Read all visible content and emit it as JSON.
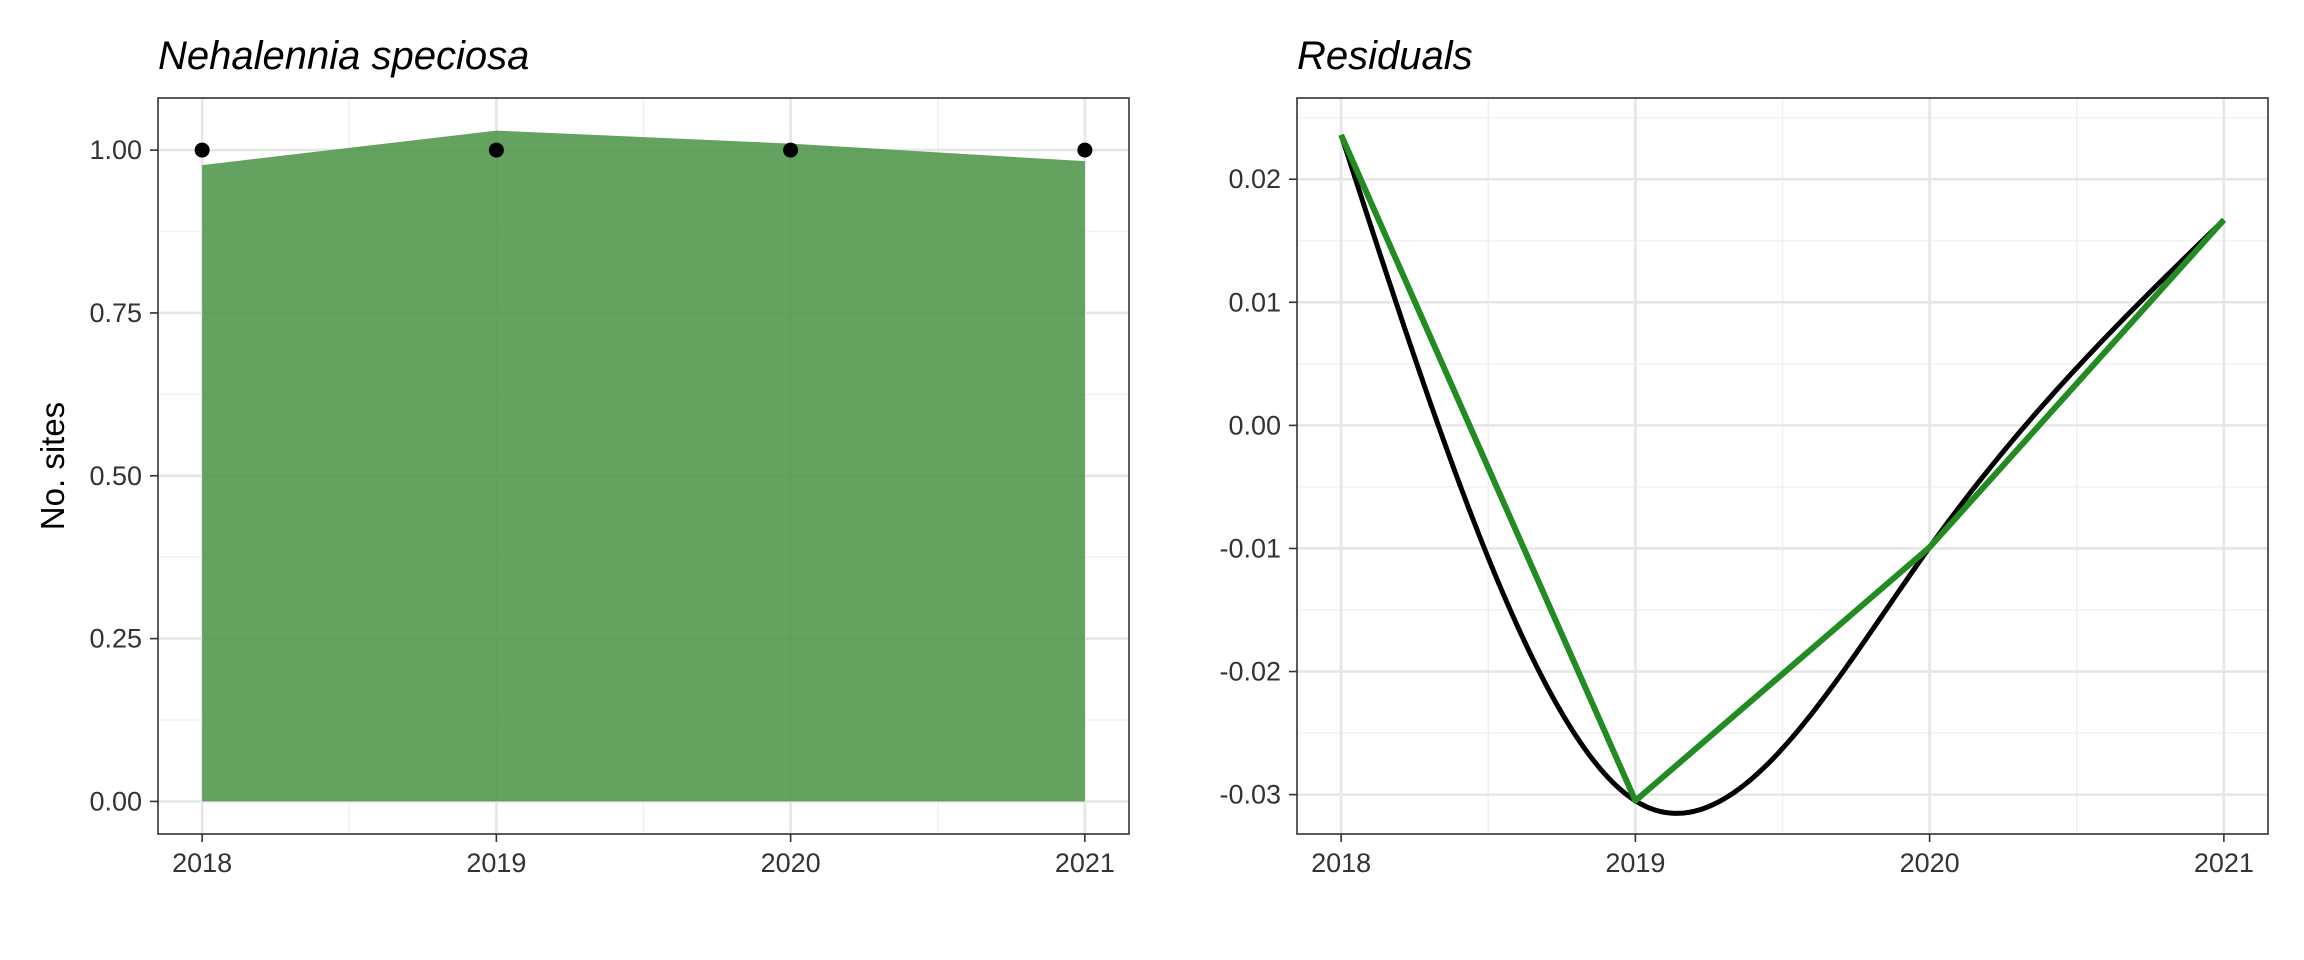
{
  "chart_data": [
    {
      "type": "area",
      "title": "Nehalennia speciosa",
      "xlabel": "",
      "ylabel": "No. sites",
      "x": [
        2018,
        2019,
        2020,
        2021
      ],
      "x_tick_labels": [
        "2018",
        "2019",
        "2020",
        "2021"
      ],
      "xlim": [
        2017.85,
        2021.15
      ],
      "ylim": [
        -0.05,
        1.08
      ],
      "y_ticks": [
        0.0,
        0.25,
        0.5,
        0.75,
        1.0
      ],
      "y_tick_labels": [
        "0.00",
        "0.25",
        "0.50",
        "0.75",
        "1.00"
      ],
      "grid": true,
      "series": [
        {
          "kind": "area",
          "values": [
            0.977,
            1.03,
            1.01,
            0.983
          ],
          "color": "#4c9447"
        },
        {
          "kind": "points",
          "values": [
            1.0,
            1.0,
            1.0,
            1.0
          ],
          "color": "#000000"
        }
      ]
    },
    {
      "type": "line",
      "title": "Residuals",
      "xlabel": "",
      "ylabel": "",
      "x": [
        2018,
        2019,
        2020,
        2021
      ],
      "x_tick_labels": [
        "2018",
        "2019",
        "2020",
        "2021"
      ],
      "xlim": [
        2017.85,
        2021.15
      ],
      "ylim": [
        -0.0332,
        0.0266
      ],
      "y_ticks": [
        -0.03,
        -0.02,
        -0.01,
        0.0,
        0.01,
        0.02
      ],
      "y_tick_labels": [
        "-0.03",
        "-0.02",
        "-0.01",
        "0.00",
        "0.01",
        "0.02"
      ],
      "grid": true,
      "series": [
        {
          "kind": "smooth-line",
          "values": [
            0.0236,
            -0.0305,
            -0.0099,
            0.0167
          ],
          "color": "#000000"
        },
        {
          "kind": "line",
          "values": [
            0.0236,
            -0.0305,
            -0.0099,
            0.0167
          ],
          "color": "#228b22"
        }
      ]
    }
  ]
}
